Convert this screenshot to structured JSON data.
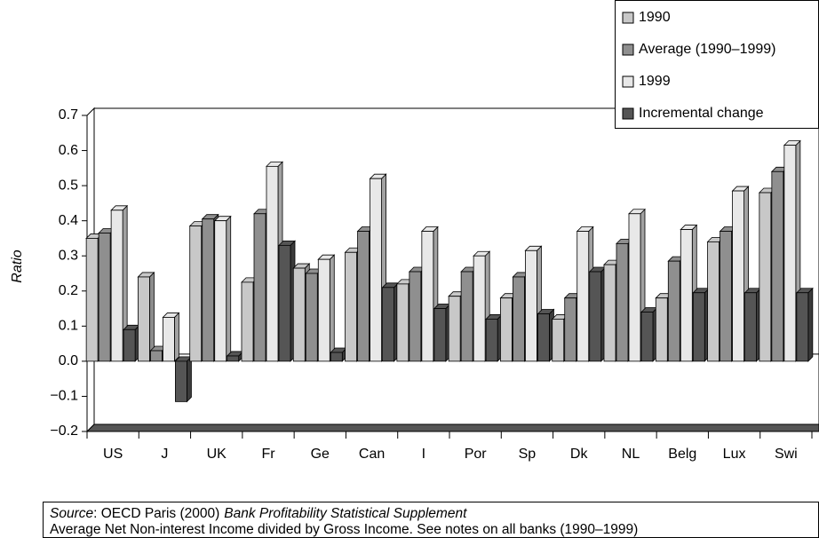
{
  "chart_data": {
    "type": "bar3d",
    "y_label": "Ratio",
    "categories": [
      "US",
      "J",
      "UK",
      "Fr",
      "Ge",
      "Can",
      "I",
      "Por",
      "Sp",
      "Dk",
      "NL",
      "Belg",
      "Lux",
      "Swi"
    ],
    "series": [
      {
        "name": "1990",
        "color": "#c8c8c8",
        "values": [
          0.35,
          0.24,
          0.385,
          0.225,
          0.265,
          0.31,
          0.22,
          0.185,
          0.18,
          0.12,
          0.275,
          0.18,
          0.34,
          0.48
        ]
      },
      {
        "name": "Average (1990–1999)",
        "color": "#8f8f8f",
        "values": [
          0.365,
          0.03,
          0.405,
          0.42,
          0.25,
          0.37,
          0.255,
          0.255,
          0.24,
          0.18,
          0.335,
          0.285,
          0.37,
          0.54
        ]
      },
      {
        "name": "1999",
        "color": "#e8e8e8",
        "values": [
          0.43,
          0.125,
          0.4,
          0.555,
          0.29,
          0.52,
          0.37,
          0.3,
          0.315,
          0.37,
          0.42,
          0.375,
          0.485,
          0.615
        ]
      },
      {
        "name": "Incremental change",
        "color": "#555555",
        "values": [
          0.09,
          -0.115,
          0.015,
          0.33,
          0.025,
          0.21,
          0.15,
          0.12,
          0.135,
          0.255,
          0.14,
          0.195,
          0.195,
          0.195
        ]
      }
    ],
    "ylim": [
      -0.2,
      0.7
    ],
    "yticks": [
      {
        "value": -0.2,
        "label": "−0.2"
      },
      {
        "value": -0.1,
        "label": "−0.1"
      },
      {
        "value": 0,
        "label": "0.0"
      },
      0.1,
      0.2,
      0.3,
      0.4,
      0.5,
      0.6,
      0.7
    ],
    "legend": "top-right",
    "notes": {
      "source_label": "Source",
      "source_text": ": OECD Paris (2000)",
      "source_title": "Bank Profitability Statistical Supplement",
      "line2": "Average Net Non-interest Income divided by Gross Income. See notes on all banks (1990–1999)"
    }
  }
}
